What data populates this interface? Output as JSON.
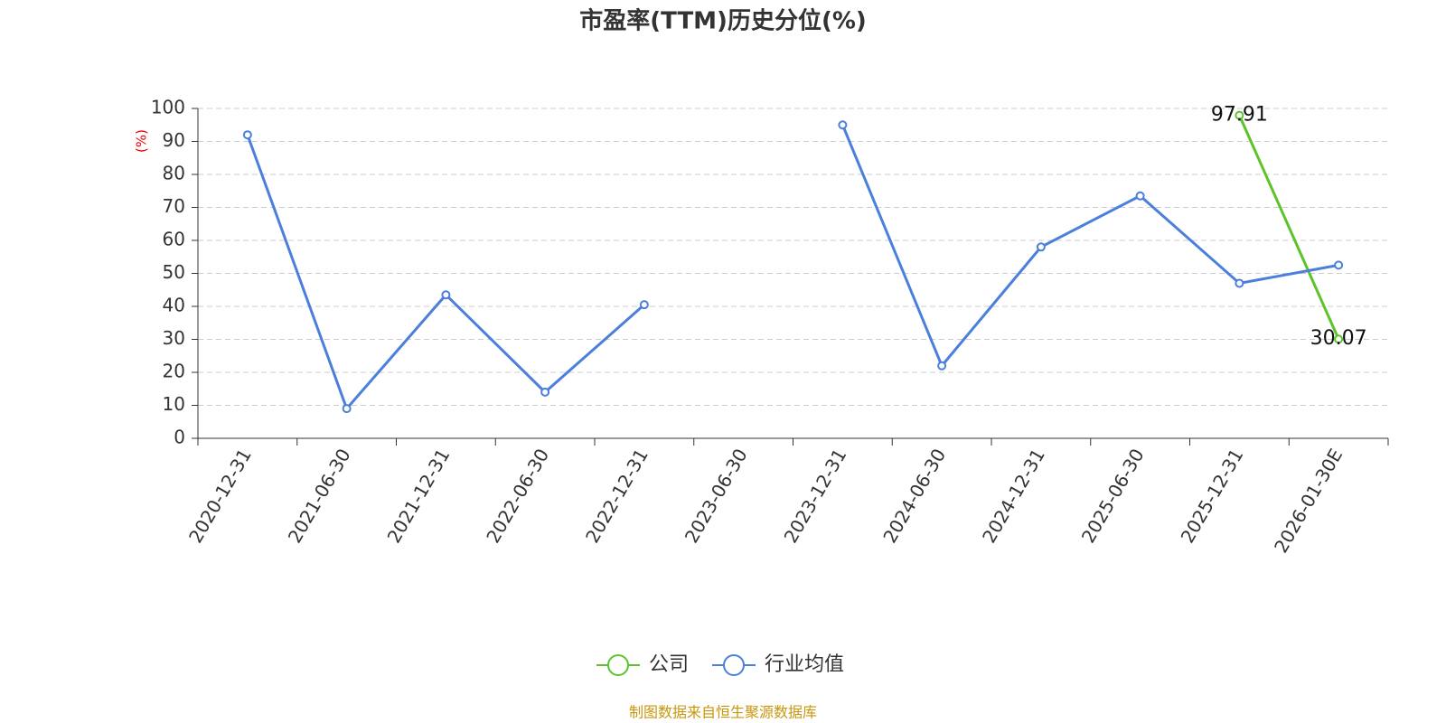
{
  "chart_data": {
    "type": "line",
    "title": "市盈率(TTM)历史分位(%)",
    "y_label": "(%)",
    "source": "制图数据来自恒生聚源数据库",
    "categories": [
      "2020-12-31",
      "2021-06-30",
      "2021-12-31",
      "2022-06-30",
      "2022-12-31",
      "2023-06-30",
      "2023-12-31",
      "2024-06-30",
      "2024-12-31",
      "2025-06-30",
      "2025-12-31",
      "2026-01-30E"
    ],
    "series": [
      {
        "name": "公司",
        "color": "#5cc42a",
        "values": [
          null,
          null,
          null,
          null,
          null,
          null,
          null,
          null,
          null,
          null,
          97.91,
          30.07
        ],
        "show_labels": true
      },
      {
        "name": "行业均值",
        "color": "#4a7fdc",
        "values": [
          92,
          9,
          43.5,
          14,
          40.5,
          null,
          95,
          22,
          58,
          73.5,
          47,
          52.5
        ],
        "show_labels": false
      }
    ],
    "ylim": [
      0,
      100
    ],
    "yticks": [
      0,
      10,
      20,
      30,
      40,
      50,
      60,
      70,
      80,
      90,
      100
    ],
    "grid": true,
    "legend": "bottom"
  }
}
